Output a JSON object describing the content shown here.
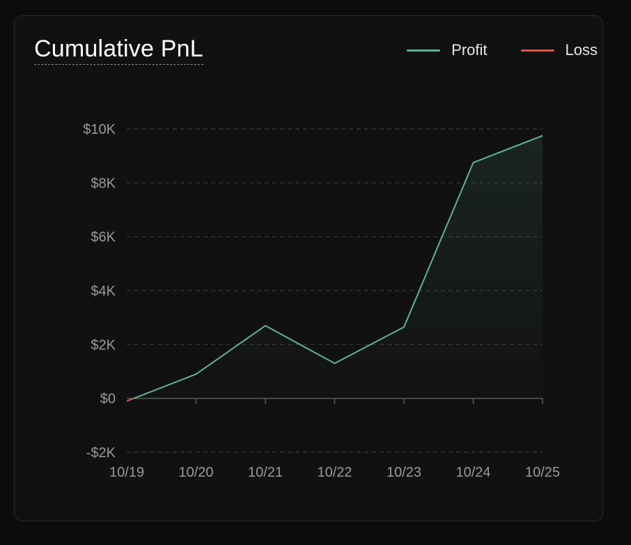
{
  "chart_data": {
    "type": "area",
    "title": "Cumulative PnL",
    "xlabel": "",
    "ylabel": "",
    "categories": [
      "10/19",
      "10/20",
      "10/21",
      "10/22",
      "10/23",
      "10/24",
      "10/25"
    ],
    "series": [
      {
        "name": "Cumulative PnL",
        "values": [
          -100,
          900,
          2700,
          1300,
          2650,
          8750,
          9750
        ]
      }
    ],
    "y_ticks": [
      -2000,
      0,
      2000,
      4000,
      6000,
      8000,
      10000
    ],
    "y_tick_labels": [
      "-$2K",
      "$0",
      "$2K",
      "$4K",
      "$6K",
      "$8K",
      "$10K"
    ],
    "ylim": [
      -2000,
      10000
    ],
    "grid": true,
    "legend": {
      "placement": "top-right",
      "entries": [
        {
          "label": "Profit",
          "color": "#5fb58f"
        },
        {
          "label": "Loss",
          "color": "#d9574a"
        }
      ]
    },
    "colors": {
      "profit": "#5fb58f",
      "loss": "#d9574a",
      "grid": "#3a3a3a",
      "axis": "#5a5a5a",
      "background": "#111111"
    }
  }
}
